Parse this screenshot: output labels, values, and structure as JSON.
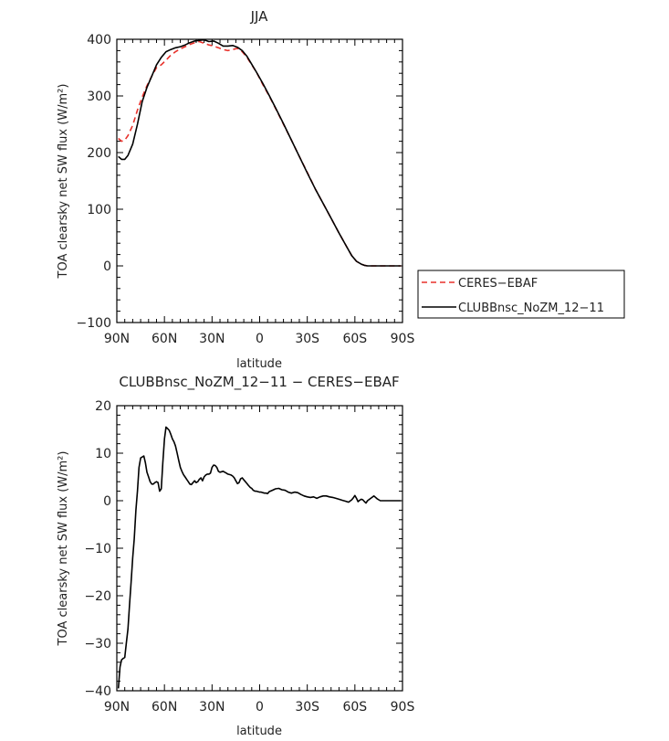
{
  "chart_data": [
    {
      "type": "line",
      "title": "JJA",
      "xlabel": "latitude",
      "ylabel": "TOA clearsky net SW flux (W/m²)",
      "xlim": [
        90,
        -90
      ],
      "ylim": [
        -100,
        400
      ],
      "x_ticks": [
        {
          "value": 90,
          "label": "90N"
        },
        {
          "value": 60,
          "label": "60N"
        },
        {
          "value": 30,
          "label": "30N"
        },
        {
          "value": 0,
          "label": "0"
        },
        {
          "value": -30,
          "label": "30S"
        },
        {
          "value": -60,
          "label": "60S"
        },
        {
          "value": -90,
          "label": "90S"
        }
      ],
      "y_ticks": [
        -100,
        0,
        100,
        200,
        300,
        400
      ],
      "legend_position": "right",
      "series": [
        {
          "name": "CERES−EBAF",
          "color": "#e8312b",
          "dash": true,
          "x": [
            89,
            87,
            85,
            83,
            80,
            77,
            74,
            71,
            68,
            65,
            62,
            59,
            56,
            53,
            50,
            47,
            44,
            41,
            38,
            35,
            32,
            29,
            26,
            23,
            20,
            17,
            14,
            11,
            8,
            5,
            2,
            -2,
            -6,
            -10,
            -15,
            -20,
            -25,
            -30,
            -35,
            -40,
            -45,
            -50,
            -55,
            -58,
            -61,
            -64,
            -66,
            -68,
            -71,
            -75,
            -80,
            -85,
            -89
          ],
          "y": [
            225,
            220,
            222,
            230,
            248,
            275,
            298,
            318,
            335,
            350,
            355,
            363,
            372,
            378,
            383,
            387,
            391,
            394,
            396,
            393,
            390,
            388,
            385,
            382,
            380,
            382,
            384,
            378,
            368,
            355,
            342,
            320,
            300,
            278,
            250,
            222,
            193,
            165,
            136,
            110,
            84,
            58,
            33,
            18,
            8,
            3,
            1,
            0,
            0,
            0,
            0,
            0,
            0
          ]
        },
        {
          "name": "CLUBBnsc_NoZM_12−11",
          "color": "#000000",
          "dash": false,
          "x": [
            89,
            87,
            85,
            83,
            80,
            77,
            74,
            71,
            68,
            65,
            62,
            59,
            56,
            53,
            50,
            47,
            44,
            41,
            38,
            35,
            32,
            29,
            26,
            23,
            20,
            17,
            14,
            11,
            8,
            5,
            2,
            -2,
            -6,
            -10,
            -15,
            -20,
            -25,
            -30,
            -35,
            -40,
            -45,
            -50,
            -55,
            -58,
            -61,
            -64,
            -66,
            -68,
            -71,
            -75,
            -80,
            -85,
            -89
          ],
          "y": [
            193,
            188,
            188,
            195,
            215,
            250,
            290,
            315,
            335,
            355,
            368,
            378,
            382,
            385,
            387,
            390,
            394,
            397,
            398,
            399,
            396,
            397,
            393,
            388,
            388,
            389,
            386,
            380,
            370,
            356,
            342,
            322,
            301,
            279,
            251,
            222,
            193,
            164,
            136,
            110,
            84,
            58,
            33,
            18,
            8,
            3,
            1,
            0,
            0,
            0,
            0,
            0,
            0
          ]
        }
      ]
    },
    {
      "type": "line",
      "title": "CLUBBnsc_NoZM_12−11 − CERES−EBAF",
      "xlabel": "latitude",
      "ylabel": "TOA clearsky net SW flux (W/m²)",
      "xlim": [
        90,
        -90
      ],
      "ylim": [
        -40,
        20
      ],
      "x_ticks": [
        {
          "value": 90,
          "label": "90N"
        },
        {
          "value": 60,
          "label": "60N"
        },
        {
          "value": 30,
          "label": "30N"
        },
        {
          "value": 0,
          "label": "0"
        },
        {
          "value": -30,
          "label": "30S"
        },
        {
          "value": -60,
          "label": "60S"
        },
        {
          "value": -90,
          "label": "90S"
        }
      ],
      "y_ticks": [
        -40,
        -30,
        -20,
        -10,
        0,
        10,
        20
      ],
      "series": [
        {
          "color": "#000000",
          "x": [
            89,
            88,
            87,
            86,
            85,
            84,
            83,
            82,
            81,
            80,
            79,
            78,
            77,
            76,
            75,
            74,
            73,
            72,
            71,
            70,
            69,
            68,
            67,
            66,
            65,
            64,
            63,
            62,
            61,
            60,
            59,
            58,
            57,
            56,
            55,
            54,
            53,
            52,
            51,
            50,
            49,
            48,
            47,
            46,
            45,
            44,
            43,
            42,
            41,
            40,
            39,
            38,
            37,
            36,
            35,
            34,
            33,
            32,
            31,
            30,
            29,
            28,
            27,
            26,
            25,
            24,
            23,
            22,
            21,
            20,
            19,
            18,
            17,
            16,
            15,
            14,
            13,
            12,
            11,
            10,
            9,
            8,
            7,
            6,
            5,
            4,
            3,
            2,
            1,
            0,
            -1,
            -2,
            -3,
            -4,
            -5,
            -6,
            -8,
            -10,
            -12,
            -14,
            -16,
            -18,
            -20,
            -22,
            -24,
            -26,
            -28,
            -30,
            -32,
            -34,
            -36,
            -38,
            -40,
            -42,
            -44,
            -46,
            -48,
            -50,
            -52,
            -54,
            -56,
            -58,
            -59,
            -60,
            -61,
            -62,
            -63,
            -64,
            -65,
            -66,
            -67,
            -68,
            -70,
            -72,
            -74,
            -76,
            -78,
            -80,
            -82,
            -84,
            -86,
            -88,
            -89
          ],
          "y": [
            -39.5,
            -35,
            -33.5,
            -33.2,
            -33,
            -30,
            -27,
            -22,
            -17,
            -12,
            -8,
            -2,
            2,
            7,
            9,
            9.2,
            9.4,
            8,
            6,
            5,
            4,
            3.5,
            3.5,
            3.8,
            4,
            3.8,
            2,
            2.5,
            8,
            13,
            15.5,
            15.2,
            14.8,
            14,
            13,
            12.4,
            11.5,
            10,
            8.5,
            7,
            6.2,
            5.5,
            5,
            4.5,
            4,
            3.5,
            3.4,
            3.8,
            4.2,
            3.8,
            4,
            4.5,
            4.8,
            4.2,
            5,
            5.4,
            5.6,
            5.6,
            5.8,
            7,
            7.5,
            7.4,
            7,
            6.2,
            6,
            6.1,
            6.2,
            6,
            5.8,
            5.6,
            5.5,
            5.4,
            5.2,
            4.8,
            4.2,
            3.6,
            3.8,
            4.6,
            4.8,
            4.4,
            4,
            3.6,
            3.2,
            2.8,
            2.6,
            2.2,
            2,
            2,
            1.9,
            1.8,
            1.8,
            1.7,
            1.6,
            1.6,
            1.5,
            1.9,
            2.2,
            2.5,
            2.6,
            2.3,
            2.2,
            1.8,
            1.6,
            1.8,
            1.7,
            1.3,
            1.0,
            0.8,
            0.7,
            0.8,
            0.5,
            0.8,
            1.0,
            1.0,
            0.8,
            0.7,
            0.5,
            0.3,
            0.1,
            -0.1,
            -0.3,
            0.2,
            0.6,
            1.1,
            0.5,
            -0.2,
            0.1,
            0.3,
            0.2,
            -0.2,
            -0.5,
            0.0,
            0.5,
            1.0,
            0.4,
            0.0,
            0.0,
            0.0,
            0.0,
            0.0,
            0.0,
            0.0,
            0.0
          ]
        }
      ]
    }
  ]
}
